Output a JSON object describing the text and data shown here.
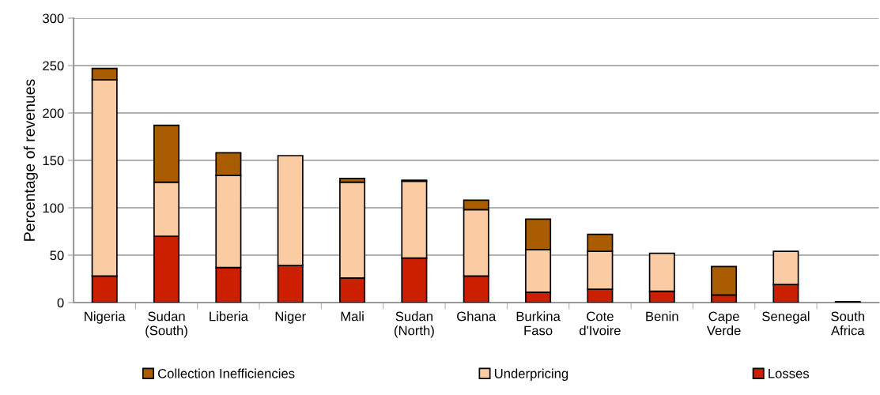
{
  "chart_data": {
    "type": "bar",
    "stacked": true,
    "ylabel": "Percentage of revenues",
    "categories": [
      "Nigeria",
      "Sudan\n(South)",
      "Liberia",
      "Niger",
      "Mali",
      "Sudan\n(North)",
      "Ghana",
      "Burkina\nFaso",
      "Cote\nd'Ivoire",
      "Benin",
      "Cape\nVerde",
      "Senegal",
      "South\nAfrica"
    ],
    "series": [
      {
        "name": "Losses",
        "color": "#cc1f00",
        "values": [
          28,
          70,
          37,
          39,
          26,
          47,
          28,
          11,
          14,
          12,
          8,
          19,
          0
        ]
      },
      {
        "name": "Underpricing",
        "color": "#fbcba3",
        "values": [
          207,
          57,
          97,
          116,
          101,
          81,
          70,
          45,
          40,
          40,
          0,
          35,
          1
        ]
      },
      {
        "name": "Collection Inefficiencies",
        "color": "#a95c00",
        "values": [
          12,
          60,
          24,
          0,
          4,
          1,
          10,
          32,
          18,
          0,
          30,
          0,
          0
        ]
      }
    ],
    "ylim": [
      0,
      300
    ],
    "yticks": [
      0,
      50,
      100,
      150,
      200,
      250,
      300
    ],
    "grid": "y",
    "legend": "bottom"
  }
}
